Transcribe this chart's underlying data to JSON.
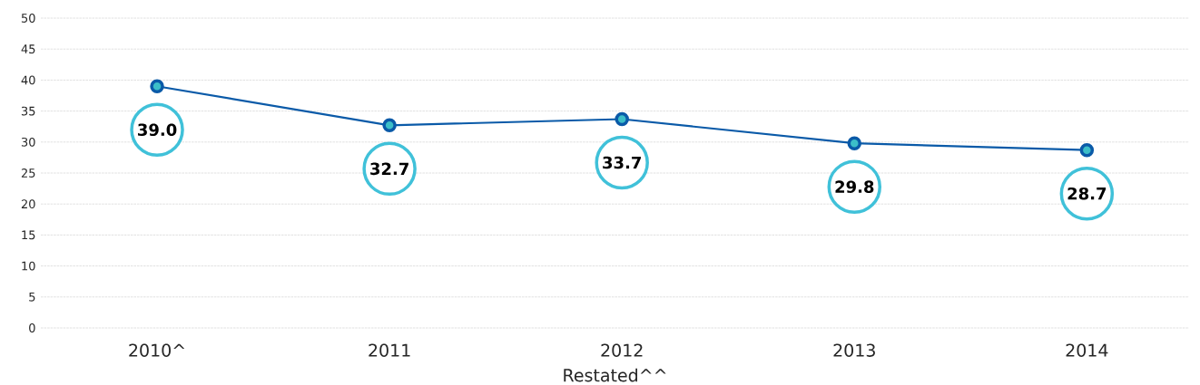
{
  "chart_data": {
    "type": "line",
    "categories": [
      "2010^",
      "2011",
      "2012",
      "2013",
      "2014"
    ],
    "xlabel": "Restated^^",
    "series": [
      {
        "color": "#0a5aa8",
        "values": [
          39.0,
          32.7,
          33.7,
          29.8,
          28.7
        ],
        "value_labels": [
          "39.0",
          "32.7",
          "33.7",
          "29.8",
          "28.7"
        ]
      }
    ],
    "ylim": [
      0,
      50
    ],
    "yticks": [
      0,
      5,
      10,
      15,
      20,
      25,
      30,
      35,
      40,
      45,
      50
    ],
    "grid": "y",
    "marker": "circle",
    "line_style": "solid"
  }
}
